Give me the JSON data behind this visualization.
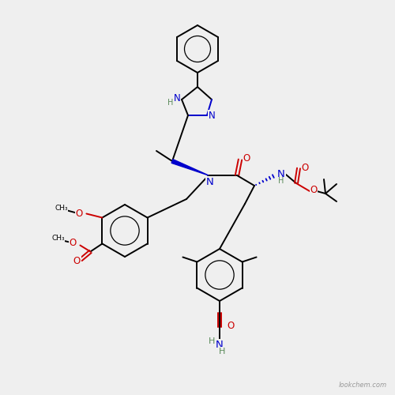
{
  "bg_color": "#efefef",
  "bond_color": "#000000",
  "bond_width": 1.4,
  "atom_colors": {
    "N": "#0000cc",
    "O": "#cc0000",
    "H": "#5a8a5a",
    "C": "#000000"
  },
  "font_size_atom": 8.5,
  "font_size_small": 7.0,
  "watermark": "lookchem.com",
  "figsize": [
    5.0,
    5.0
  ],
  "dpi": 100
}
